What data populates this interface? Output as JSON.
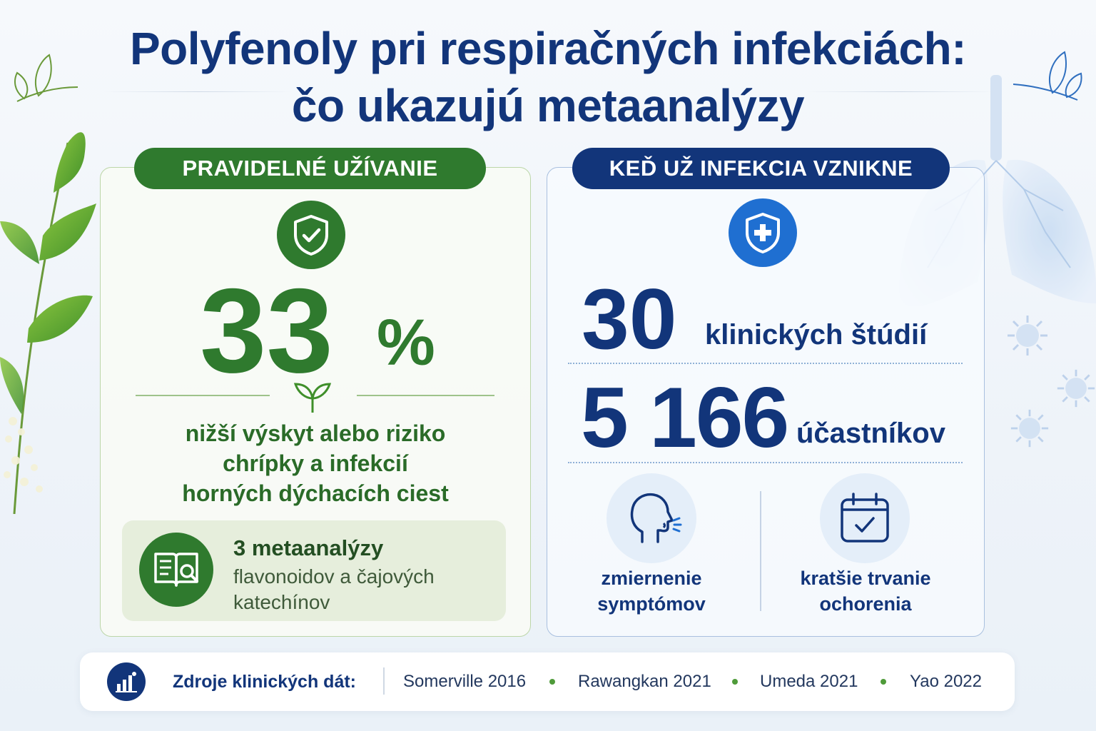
{
  "title": {
    "line1": "Polyfenoly pri respiračných infekciách:",
    "line2": "čo ukazujú metaanalýzy"
  },
  "left_panel": {
    "header": "PRAVIDELNÉ UŽÍVANIE",
    "icon": "shield-check-icon",
    "percent_value": "33",
    "percent_sign": "%",
    "description": [
      "nižší výskyt alebo riziko",
      "chrípky a infekcií",
      "horných dýchacích ciest"
    ],
    "meta": {
      "icon": "book-search-icon",
      "title": "3 metaanalýzy",
      "subtitle_lines": [
        "flavonoidov a čajových",
        "katechínov"
      ]
    }
  },
  "right_panel": {
    "header": "KEĎ UŽ INFEKCIA VZNIKNE",
    "icon": "shield-plus-icon",
    "stat1": {
      "value": "30",
      "label": "klinických štúdií"
    },
    "stat2": {
      "value": "5 166",
      "label": "účastníkov"
    },
    "features": [
      {
        "icon": "head-breath-icon",
        "lines": [
          "zmiernenie",
          "symptómov"
        ]
      },
      {
        "icon": "calendar-check-icon",
        "lines": [
          "kratšie trvanie",
          "ochorenia"
        ]
      }
    ]
  },
  "sources": {
    "icon": "bar-chart-icon",
    "label": "Zdroje klinických dát:",
    "items": [
      "Somerville 2016",
      "Rawangkan 2021",
      "Umeda 2021",
      "Yao 2022"
    ]
  },
  "colors": {
    "navy": "#12357a",
    "green": "#2f7a2e",
    "blue_accent": "#1f6fd1",
    "bullet_green": "#4f9b3a"
  }
}
